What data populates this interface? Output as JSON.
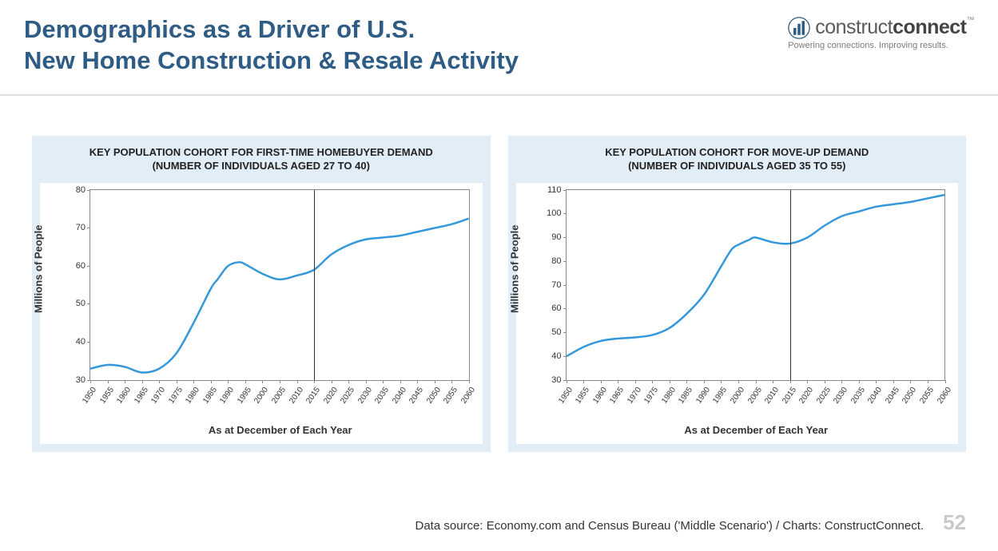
{
  "header": {
    "title_line1": "Demographics as a Driver of U.S.",
    "title_line2": "New Home Construction & Resale Activity",
    "title_color": "#2e5c84"
  },
  "logo": {
    "brand_part1": "construct",
    "brand_part2": "connect",
    "tagline": "Powering connections. Improving results.",
    "tm": "™",
    "icon_color": "#2e5c84"
  },
  "charts_common": {
    "xaxis_label": "As at December of Each Year",
    "yaxis_label": "Millions of People",
    "x_years": [
      1950,
      1955,
      1960,
      1965,
      1970,
      1975,
      1980,
      1985,
      1990,
      1995,
      2000,
      2005,
      2010,
      2015,
      2020,
      2025,
      2030,
      2035,
      2040,
      2045,
      2050,
      2055,
      2060
    ],
    "x_min": 1950,
    "x_max": 2060,
    "marker_year": 2015,
    "line_color": "#3498db",
    "line_width": 2.5,
    "grid_color": "#888888",
    "panel_bg": "#e1edf7",
    "plot_bg": "#ffffff",
    "tick_fontsize": 11,
    "label_fontsize": 13,
    "title_fontsize": 13
  },
  "chart_left": {
    "title_line1": "KEY POPULATION COHORT FOR FIRST-TIME HOMEBUYER DEMAND",
    "title_line2": "(NUMBER OF INDIVIDUALS AGED 27 TO 40)",
    "type": "line",
    "y_min": 30,
    "y_max": 80,
    "y_tick_step": 10,
    "y_ticks": [
      30,
      40,
      50,
      60,
      70,
      80
    ],
    "data": [
      [
        1950,
        33
      ],
      [
        1955,
        34
      ],
      [
        1960,
        33.5
      ],
      [
        1965,
        32
      ],
      [
        1970,
        33
      ],
      [
        1975,
        37
      ],
      [
        1980,
        45
      ],
      [
        1985,
        54
      ],
      [
        1987,
        56.5
      ],
      [
        1990,
        60
      ],
      [
        1993,
        61
      ],
      [
        1995,
        60.5
      ],
      [
        2000,
        58
      ],
      [
        2005,
        56.5
      ],
      [
        2010,
        57.5
      ],
      [
        2015,
        59
      ],
      [
        2020,
        63
      ],
      [
        2025,
        65.5
      ],
      [
        2030,
        67
      ],
      [
        2035,
        67.5
      ],
      [
        2040,
        68
      ],
      [
        2045,
        69
      ],
      [
        2050,
        70
      ],
      [
        2055,
        71
      ],
      [
        2060,
        72.5
      ]
    ]
  },
  "chart_right": {
    "title_line1": "KEY POPULATION COHORT FOR MOVE-UP DEMAND",
    "title_line2": "(NUMBER OF INDIVIDUALS AGED 35 TO 55)",
    "type": "line",
    "y_min": 30,
    "y_max": 110,
    "y_tick_step": 10,
    "y_ticks": [
      30,
      40,
      50,
      60,
      70,
      80,
      90,
      100,
      110
    ],
    "data": [
      [
        1950,
        40
      ],
      [
        1955,
        44
      ],
      [
        1960,
        46.5
      ],
      [
        1965,
        47.5
      ],
      [
        1970,
        48
      ],
      [
        1975,
        49
      ],
      [
        1980,
        52
      ],
      [
        1985,
        58
      ],
      [
        1990,
        66
      ],
      [
        1995,
        78
      ],
      [
        1998,
        85
      ],
      [
        2000,
        87
      ],
      [
        2003,
        89
      ],
      [
        2005,
        90
      ],
      [
        2010,
        88
      ],
      [
        2015,
        87.5
      ],
      [
        2020,
        90
      ],
      [
        2025,
        95
      ],
      [
        2030,
        99
      ],
      [
        2035,
        101
      ],
      [
        2040,
        103
      ],
      [
        2045,
        104
      ],
      [
        2050,
        105
      ],
      [
        2055,
        106.5
      ],
      [
        2060,
        108
      ]
    ]
  },
  "footer": {
    "source": "Data source: Economy.com and Census Bureau ('Middle Scenario') / Charts: ConstructConnect.",
    "page": "52",
    "page_color": "#c9c9c9"
  }
}
